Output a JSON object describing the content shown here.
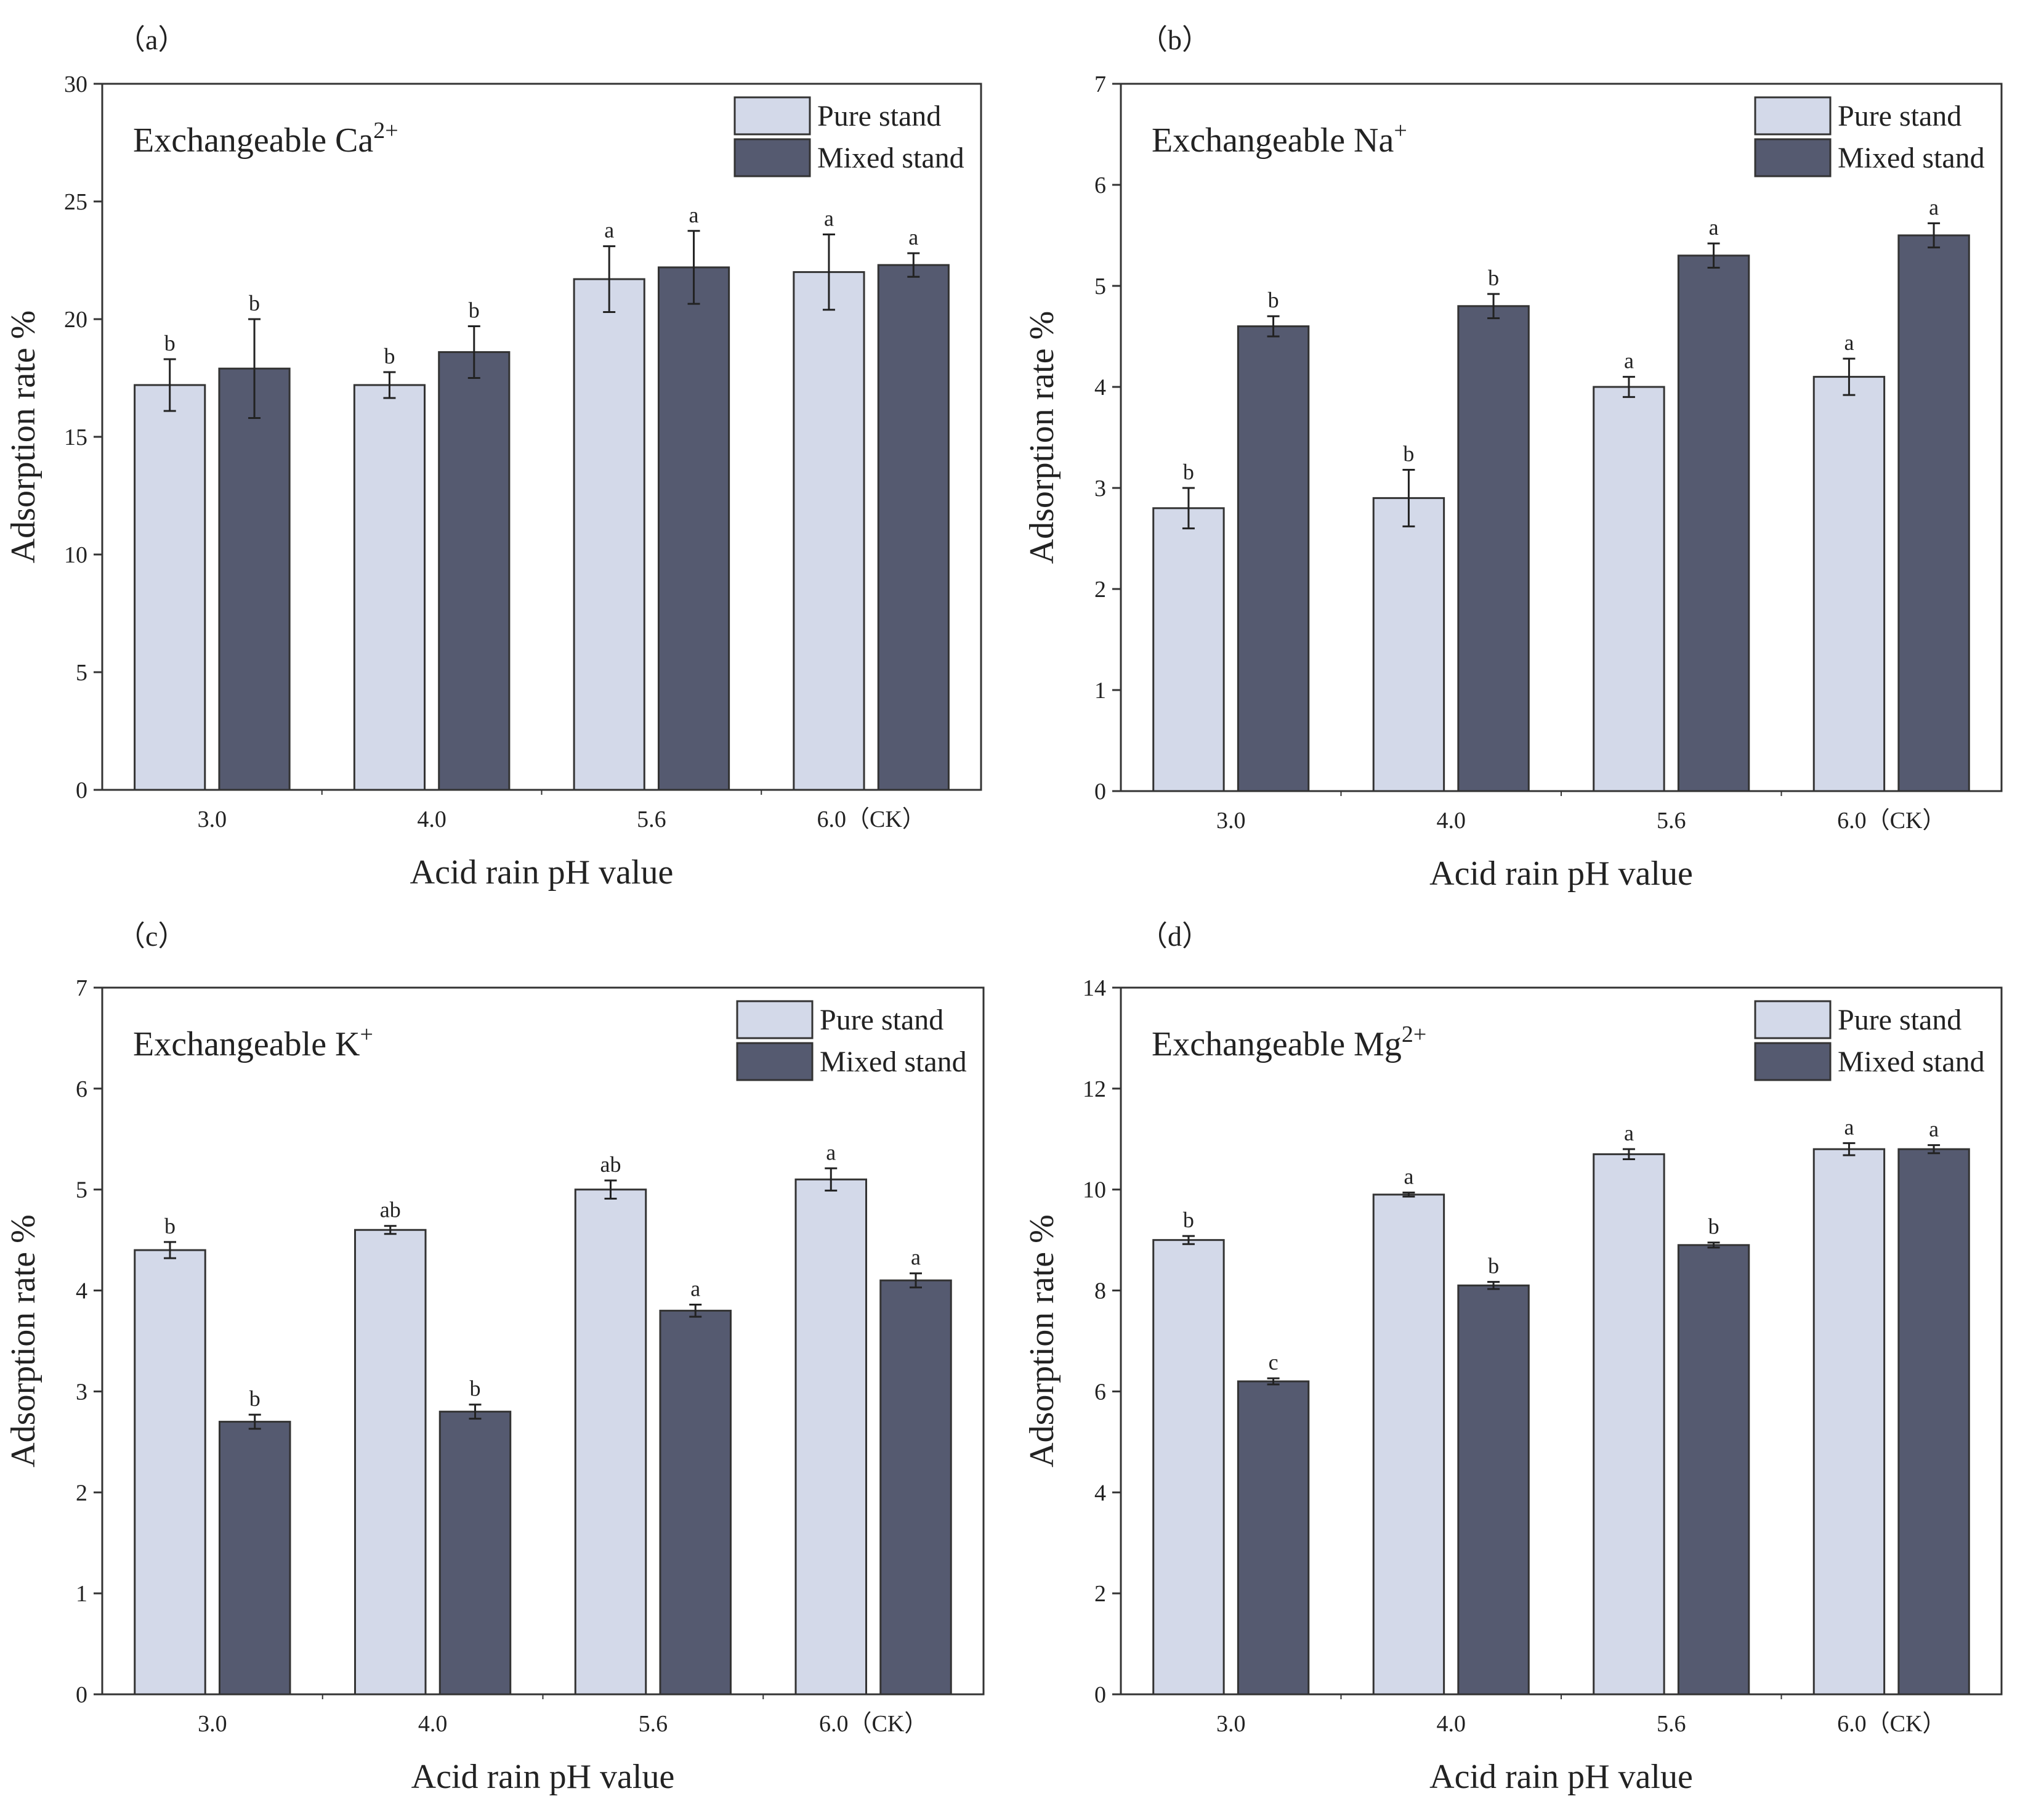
{
  "chart_data": [
    {
      "type": "bar",
      "panel_label": "（a）",
      "title": "Exchangeable Ca",
      "title_sup": "2+",
      "xlabel": "Acid rain pH value",
      "ylabel": "Adsorption rate %",
      "categories": [
        "3.0",
        "4.0",
        "5.6",
        "6.0（CK）"
      ],
      "ylim": [
        0,
        30
      ],
      "yticks": [
        "0",
        "5",
        "10",
        "15",
        "20",
        "25",
        "30"
      ],
      "legend_position": "top-right",
      "series": [
        {
          "name": "Pure stand",
          "color": "#d3d9e9",
          "values": [
            17.2,
            17.2,
            21.7,
            22.0
          ],
          "errors": [
            1.1,
            0.55,
            1.4,
            1.6
          ],
          "letters": [
            "b",
            "b",
            "a",
            "a"
          ]
        },
        {
          "name": "Mixed stand",
          "color": "#555a70",
          "values": [
            17.9,
            18.6,
            22.2,
            22.3
          ],
          "errors": [
            2.1,
            1.1,
            1.55,
            0.5
          ],
          "letters": [
            "b",
            "b",
            "a",
            "a"
          ]
        }
      ]
    },
    {
      "type": "bar",
      "panel_label": "（b）",
      "title": "Exchangeable Na",
      "title_sup": "+",
      "xlabel": "Acid rain pH value",
      "ylabel": "Adsorption rate %",
      "categories": [
        "3.0",
        "4.0",
        "5.6",
        "6.0（CK）"
      ],
      "ylim": [
        0,
        7
      ],
      "yticks": [
        "0",
        "1",
        "2",
        "3",
        "4",
        "5",
        "6",
        "7"
      ],
      "legend_position": "top-right",
      "series": [
        {
          "name": "Pure stand",
          "color": "#d3d9e9",
          "values": [
            2.8,
            2.9,
            4.0,
            4.1
          ],
          "errors": [
            0.2,
            0.28,
            0.1,
            0.18
          ],
          "letters": [
            "b",
            "b",
            "a",
            "a"
          ]
        },
        {
          "name": "Mixed stand",
          "color": "#555a70",
          "values": [
            4.6,
            4.8,
            5.3,
            5.5
          ],
          "errors": [
            0.1,
            0.12,
            0.12,
            0.12
          ],
          "letters": [
            "b",
            "b",
            "a",
            "a"
          ]
        }
      ]
    },
    {
      "type": "bar",
      "panel_label": "（c）",
      "title": "Exchangeable K",
      "title_sup": "+",
      "xlabel": "Acid rain pH value",
      "ylabel": "Adsorption rate %",
      "categories": [
        "3.0",
        "4.0",
        "5.6",
        "6.0（CK）"
      ],
      "ylim": [
        0,
        7
      ],
      "yticks": [
        "0",
        "1",
        "2",
        "3",
        "4",
        "5",
        "6",
        "7"
      ],
      "legend_position": "top-right",
      "series": [
        {
          "name": "Pure stand",
          "color": "#d3d9e9",
          "values": [
            4.4,
            4.6,
            5.0,
            5.1
          ],
          "errors": [
            0.08,
            0.04,
            0.09,
            0.11
          ],
          "letters": [
            "b",
            "ab",
            "ab",
            "a"
          ]
        },
        {
          "name": "Mixed stand",
          "color": "#555a70",
          "values": [
            2.7,
            2.8,
            3.8,
            4.1
          ],
          "errors": [
            0.07,
            0.07,
            0.06,
            0.07
          ],
          "letters": [
            "b",
            "b",
            "a",
            "a"
          ]
        }
      ]
    },
    {
      "type": "bar",
      "panel_label": "（d）",
      "title": "Exchangeable Mg",
      "title_sup": "2+",
      "xlabel": "Acid rain pH value",
      "ylabel": "Adsorption rate %",
      "categories": [
        "3.0",
        "4.0",
        "5.6",
        "6.0（CK）"
      ],
      "ylim": [
        0,
        14
      ],
      "yticks": [
        "0",
        "2",
        "4",
        "6",
        "8",
        "10",
        "12",
        "14"
      ],
      "legend_position": "top-right",
      "series": [
        {
          "name": "Pure stand",
          "color": "#d3d9e9",
          "values": [
            9.0,
            9.9,
            10.7,
            10.8
          ],
          "errors": [
            0.08,
            0.04,
            0.1,
            0.12
          ],
          "letters": [
            "b",
            "a",
            "a",
            "a"
          ]
        },
        {
          "name": "Mixed stand",
          "color": "#555a70",
          "values": [
            6.2,
            8.1,
            8.9,
            10.8
          ],
          "errors": [
            0.06,
            0.07,
            0.05,
            0.08
          ],
          "letters": [
            "c",
            "b",
            "b",
            "a"
          ]
        }
      ]
    }
  ]
}
